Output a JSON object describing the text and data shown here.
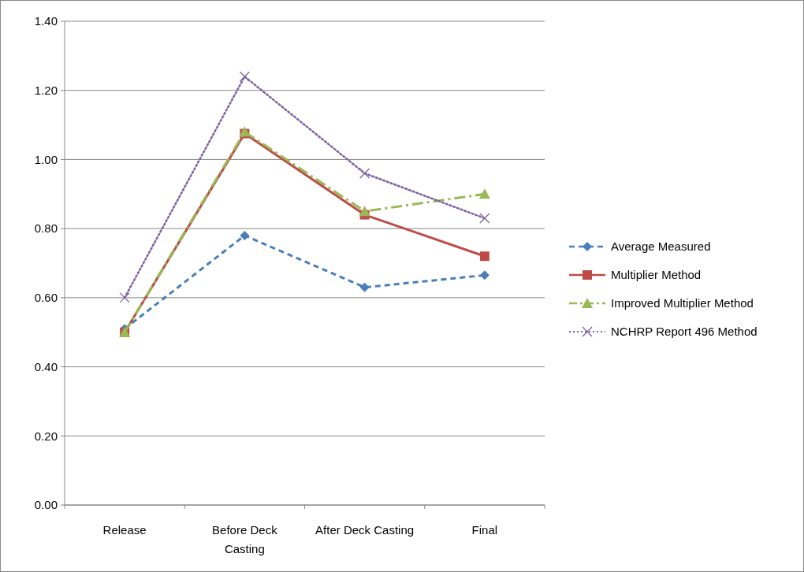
{
  "chart_data": {
    "type": "line",
    "categories": [
      "Release",
      "Before Deck Casting",
      "After Deck Casting",
      "Final"
    ],
    "series": [
      {
        "name": "Average Measured",
        "color": "#4a7ebb",
        "values": [
          0.51,
          0.78,
          0.63,
          0.665
        ],
        "marker": "diamond",
        "line_style": "dashed"
      },
      {
        "name": "Multiplier Method",
        "color": "#be4b48",
        "values": [
          0.5,
          1.075,
          0.84,
          0.72
        ],
        "marker": "square",
        "line_style": "solid"
      },
      {
        "name": "Improved Multiplier Method",
        "color": "#98b954",
        "values": [
          0.5,
          1.08,
          0.85,
          0.9
        ],
        "marker": "triangle",
        "line_style": "dashed"
      },
      {
        "name": "NCHRP Report 496 Method",
        "color": "#7e62a1",
        "values": [
          0.6,
          1.24,
          0.96,
          0.83
        ],
        "marker": "cross",
        "line_style": "dotted"
      }
    ],
    "ylim": [
      0,
      1.4
    ],
    "yticks": [
      {
        "value": 0,
        "label": "0.00"
      },
      {
        "value": 0.2,
        "label": "0.20"
      },
      {
        "value": 0.4,
        "label": "0.40"
      },
      {
        "value": 0.6,
        "label": "0.60"
      },
      {
        "value": 0.8,
        "label": "0.80"
      },
      {
        "value": 1,
        "label": "1.00"
      },
      {
        "value": 1.2,
        "label": "1.20"
      },
      {
        "value": 1.4,
        "label": "1.40"
      }
    ],
    "grid": "y",
    "legend": "right"
  }
}
